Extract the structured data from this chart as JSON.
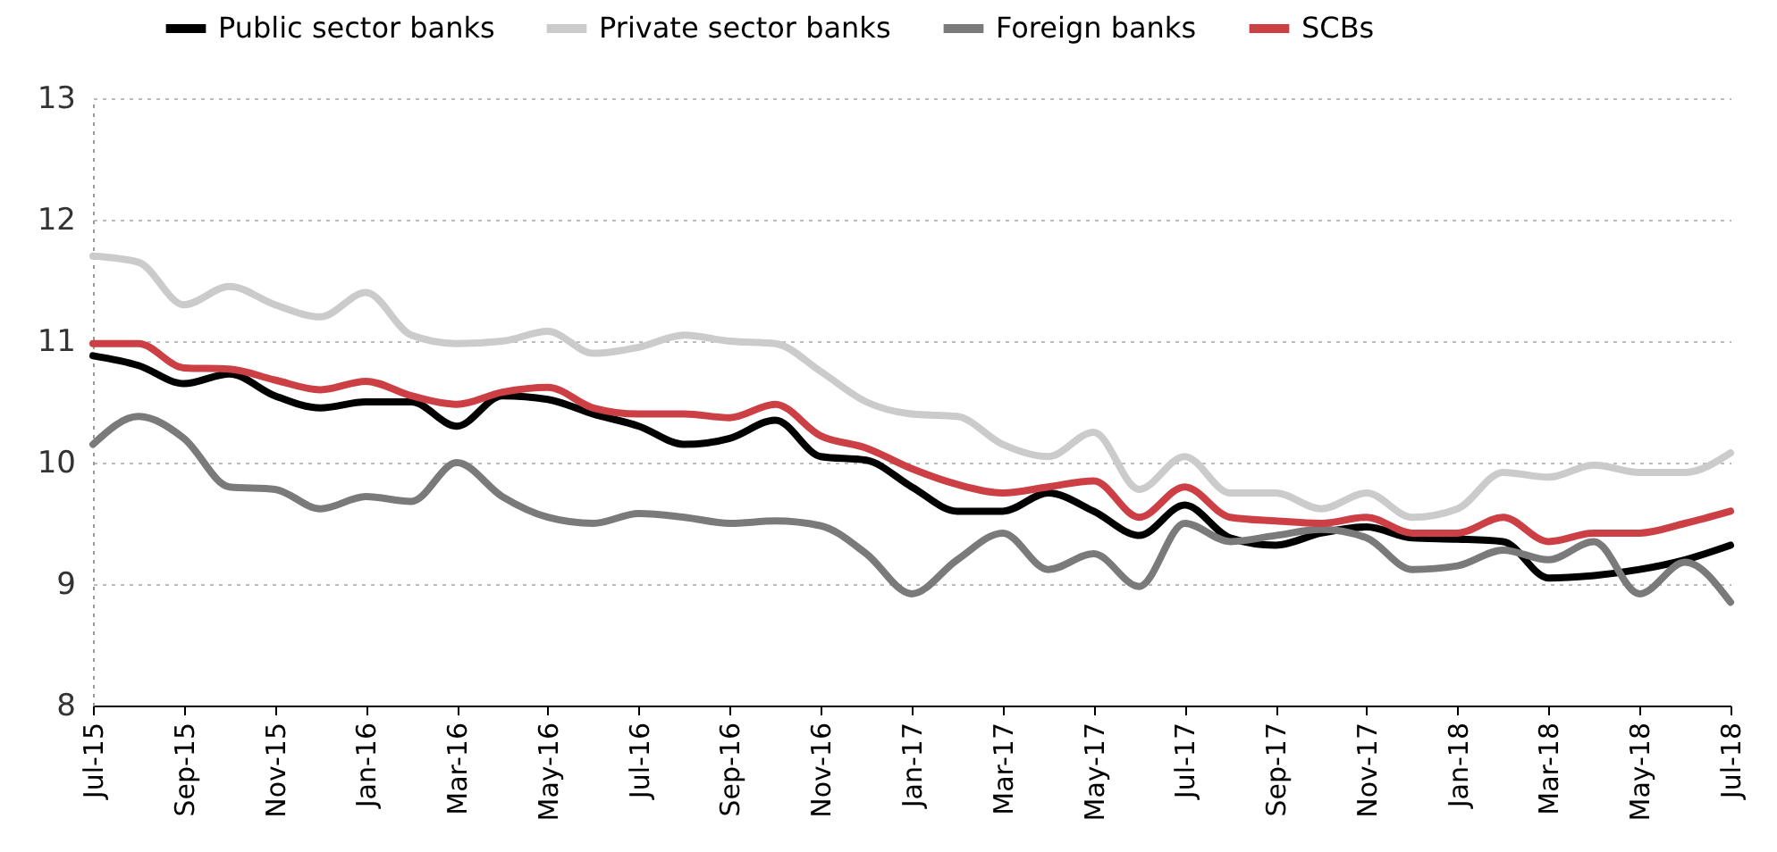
{
  "chart_data": {
    "type": "line",
    "categories": [
      "Jul-15",
      null,
      "Sep-15",
      null,
      "Nov-15",
      null,
      "Jan-16",
      null,
      "Mar-16",
      null,
      "May-16",
      null,
      "Jul-16",
      null,
      "Sep-16",
      null,
      "Nov-16",
      null,
      "Jan-17",
      null,
      "Mar-17",
      null,
      "May-17",
      null,
      "Jul-17",
      null,
      "Sep-17",
      null,
      "Nov-17",
      null,
      "Jan-18",
      null,
      "Mar-18",
      null,
      "May-18",
      null,
      "Jul-18"
    ],
    "series": [
      {
        "name": "Public sector banks",
        "color": "#000000",
        "values": [
          10.88,
          10.8,
          10.65,
          10.73,
          10.55,
          10.45,
          10.5,
          10.5,
          10.3,
          10.55,
          10.52,
          10.4,
          10.3,
          10.15,
          10.2,
          10.35,
          10.05,
          10.02,
          9.8,
          9.6,
          9.6,
          9.75,
          9.6,
          9.4,
          9.65,
          9.38,
          9.32,
          9.42,
          9.47,
          9.38,
          9.37,
          9.35,
          9.05,
          9.07,
          9.12,
          9.2,
          9.32
        ]
      },
      {
        "name": "Private sector banks",
        "color": "#cbcbcb",
        "values": [
          11.7,
          11.65,
          11.3,
          11.45,
          11.3,
          11.2,
          11.4,
          11.05,
          10.98,
          11.0,
          11.08,
          10.9,
          10.95,
          11.05,
          11.0,
          10.98,
          10.75,
          10.5,
          10.4,
          10.38,
          10.15,
          10.05,
          10.25,
          9.78,
          10.05,
          9.75,
          9.75,
          9.62,
          9.75,
          9.55,
          9.62,
          9.92,
          9.88,
          9.98,
          9.92,
          9.92,
          10.08
        ]
      },
      {
        "name": "Foreign banks",
        "color": "#7a7a7a",
        "values": [
          10.15,
          10.38,
          10.2,
          9.8,
          9.78,
          9.62,
          9.72,
          9.68,
          10.0,
          9.72,
          9.55,
          9.5,
          9.58,
          9.55,
          9.5,
          9.52,
          9.48,
          9.25,
          8.92,
          9.2,
          9.42,
          9.12,
          9.25,
          8.98,
          9.5,
          9.35,
          9.4,
          9.45,
          9.38,
          9.12,
          9.15,
          9.28,
          9.2,
          9.35,
          8.92,
          9.18,
          8.85
        ]
      },
      {
        "name": "SCBs",
        "color": "#cc3f44",
        "values": [
          10.98,
          10.98,
          10.78,
          10.77,
          10.68,
          10.6,
          10.67,
          10.55,
          10.48,
          10.58,
          10.62,
          10.45,
          10.4,
          10.4,
          10.37,
          10.48,
          10.22,
          10.12,
          9.95,
          9.82,
          9.75,
          9.8,
          9.85,
          9.55,
          9.8,
          9.55,
          9.52,
          9.5,
          9.55,
          9.42,
          9.42,
          9.55,
          9.35,
          9.42,
          9.42,
          9.5,
          9.6
        ]
      }
    ],
    "ylim": [
      8,
      13
    ],
    "yticks": [
      8,
      9,
      10,
      11,
      12,
      13
    ],
    "grid": "y",
    "legend": "top",
    "line_style": "solid"
  }
}
